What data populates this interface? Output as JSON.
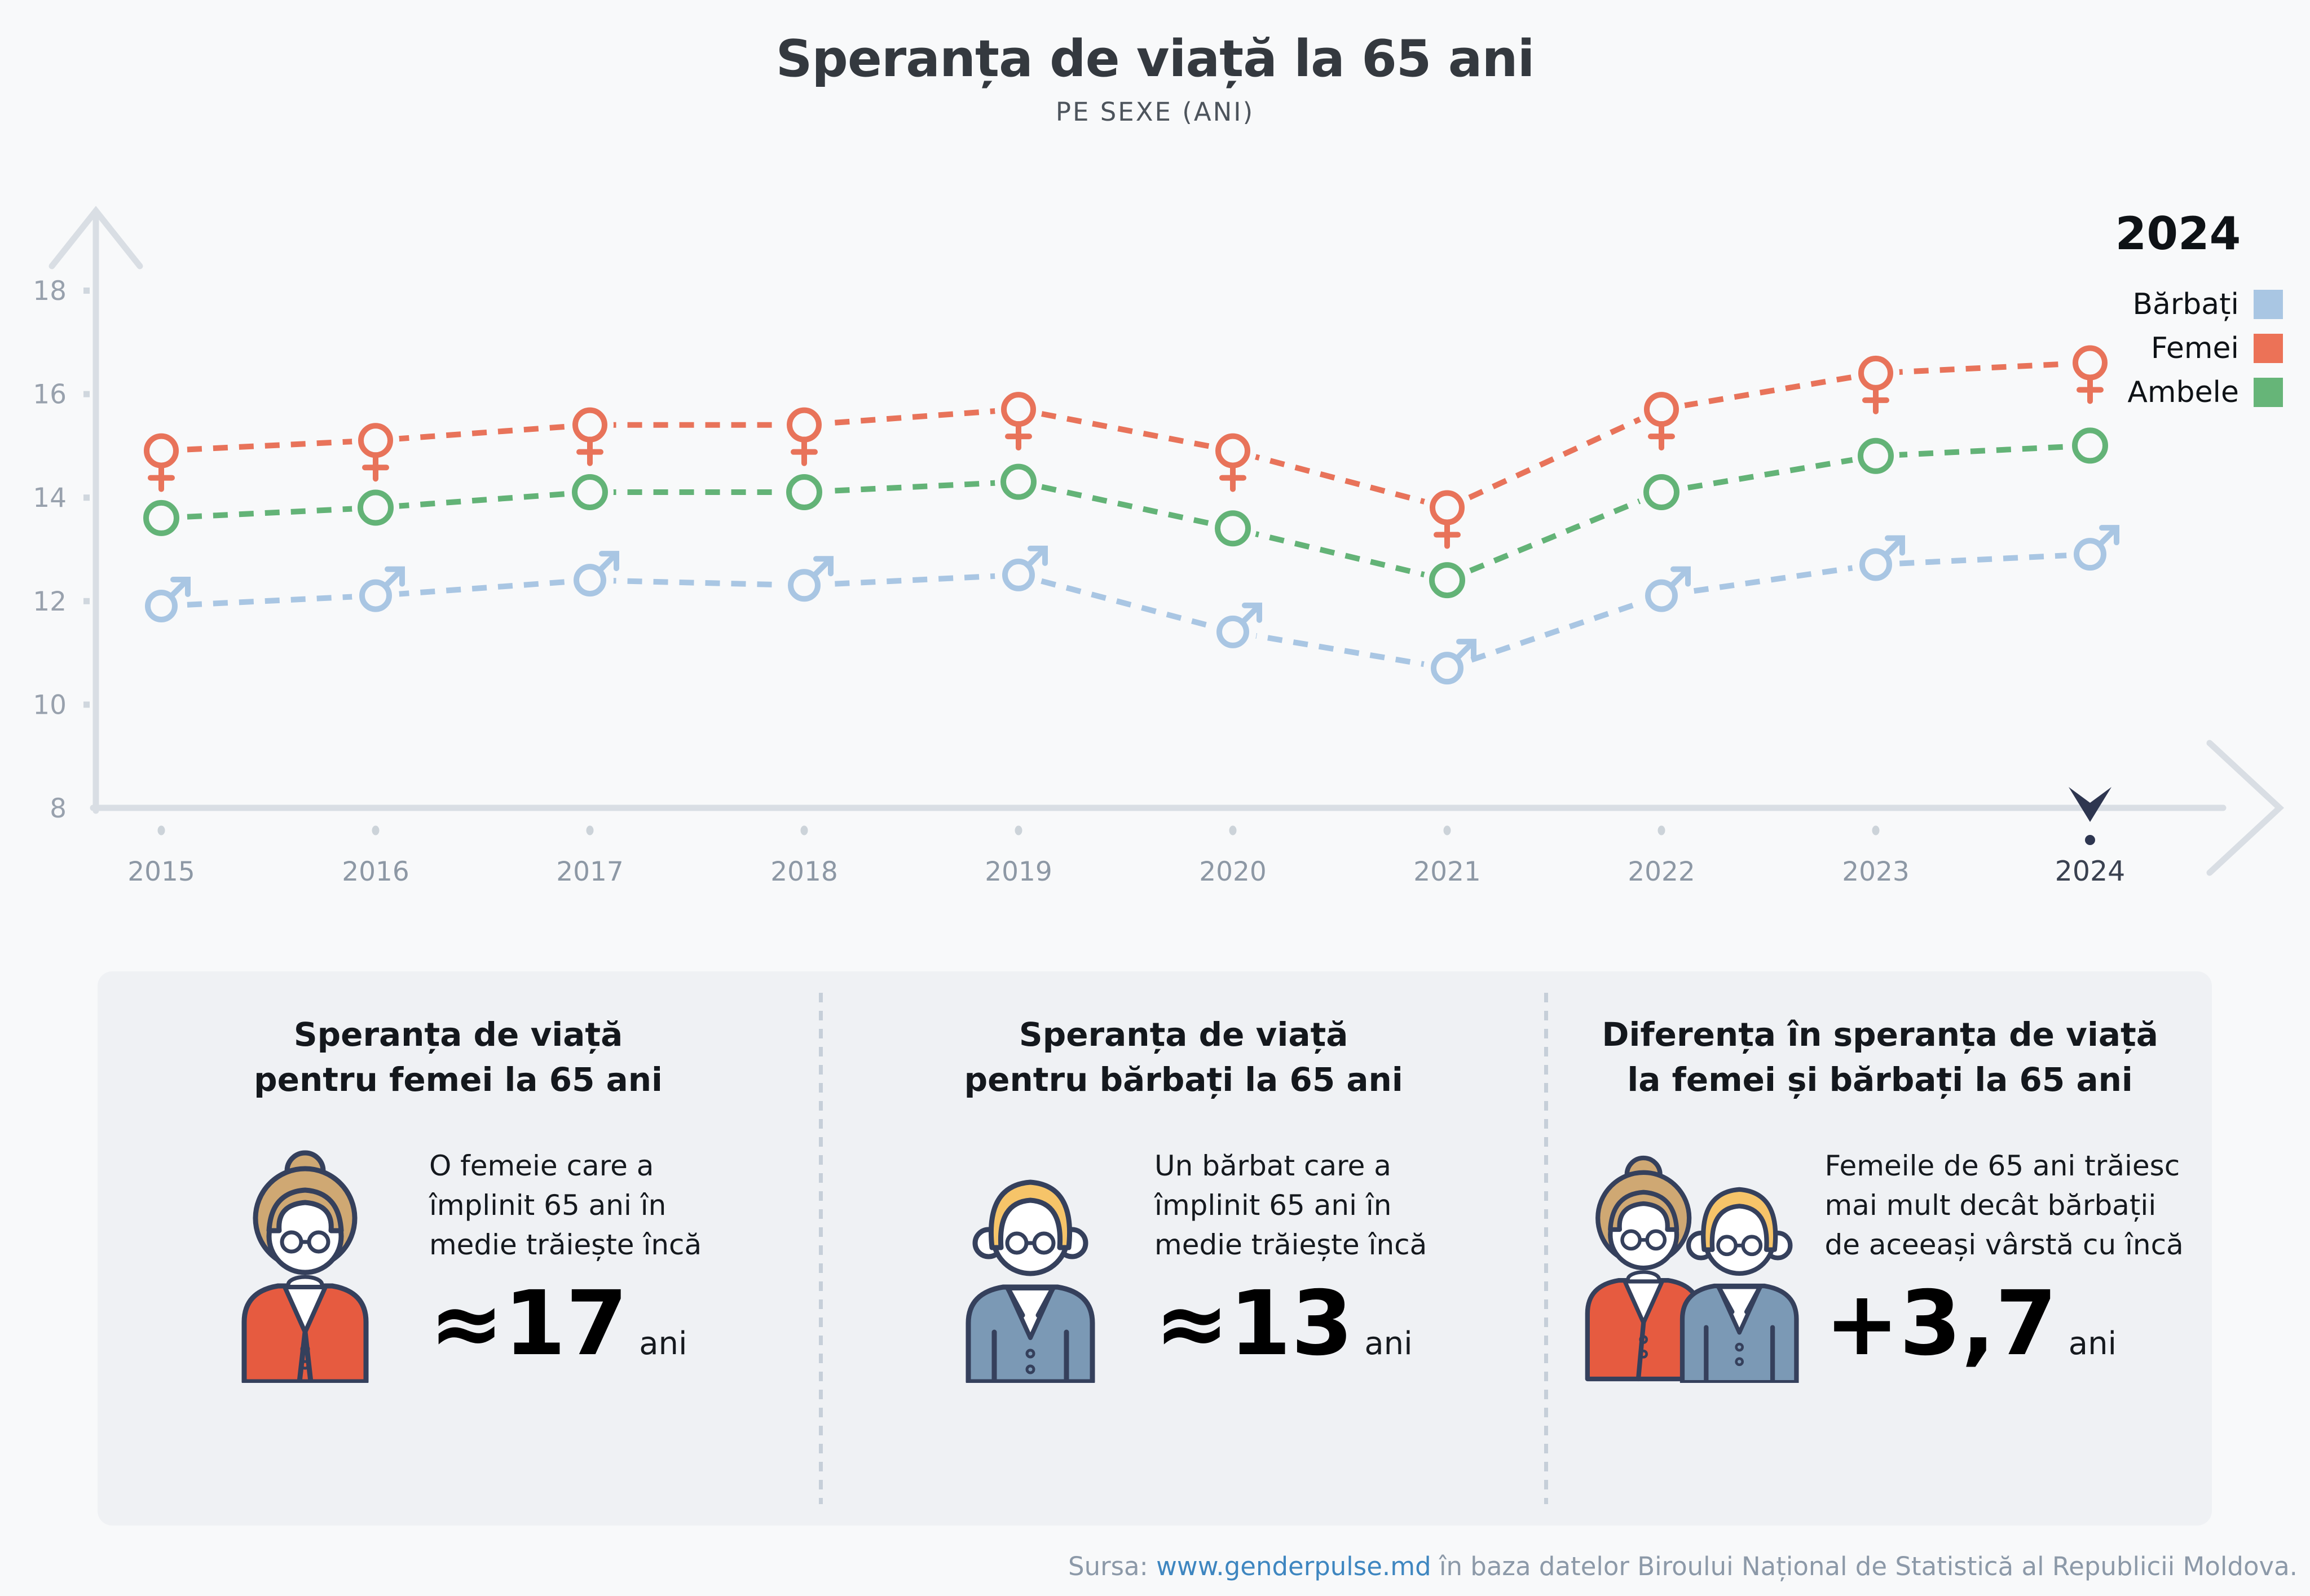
{
  "title": "Speranța de viață la 65 ani",
  "subtitle": "PE SEXE (ANI)",
  "legend": {
    "year": "2024",
    "items": [
      {
        "label": "Bărbați",
        "color": "#a9c6e3"
      },
      {
        "label": "Femei",
        "color": "#ec7257"
      },
      {
        "label": "Ambele",
        "color": "#66b578"
      }
    ]
  },
  "chart_data": {
    "type": "line",
    "title": "Speranța de viață la 65 ani",
    "subtitle": "PE SEXE (ANI)",
    "x": [
      2015,
      2016,
      2017,
      2018,
      2019,
      2020,
      2021,
      2022,
      2023,
      2024
    ],
    "series": [
      {
        "name": "Femei",
        "color": "#e8735a",
        "marker": "female",
        "values": [
          14.9,
          15.1,
          15.4,
          15.4,
          15.7,
          14.9,
          13.8,
          15.7,
          16.4,
          16.6
        ]
      },
      {
        "name": "Ambele",
        "color": "#63b377",
        "marker": "circle",
        "values": [
          13.6,
          13.8,
          14.1,
          14.1,
          14.3,
          13.4,
          12.4,
          14.1,
          14.8,
          15.0
        ]
      },
      {
        "name": "Bărbați",
        "color": "#a9c6e3",
        "marker": "male",
        "values": [
          11.9,
          12.1,
          12.4,
          12.3,
          12.5,
          11.4,
          10.7,
          12.1,
          12.7,
          12.9
        ]
      }
    ],
    "ylim": [
      8,
      18
    ],
    "yticks": [
      8,
      10,
      12,
      14,
      16,
      18
    ],
    "line_style": "dashed",
    "grid": false,
    "legend_position": "top-right",
    "highlight_year": 2024
  },
  "cards": [
    {
      "title_line1": "Speranța de viață",
      "title_line2": "pentru femei la 65 ani",
      "icon": "woman",
      "text_line1": "O femeie care a",
      "text_line2": "împlinit 65 ani în",
      "text_line3": "medie trăiește încă",
      "value": "≈17",
      "unit": "ani"
    },
    {
      "title_line1": "Speranța de viață",
      "title_line2": "pentru bărbați la 65 ani",
      "icon": "man",
      "text_line1": "Un bărbat care a",
      "text_line2": "împlinit 65 ani în",
      "text_line3": "medie trăiește încă",
      "value": "≈13",
      "unit": "ani"
    },
    {
      "title_line1": "Diferența în speranța de viață",
      "title_line2": "la femei și bărbați la 65 ani",
      "icon": "woman-and-man",
      "text_line1": "Femeile de 65 ani trăiesc",
      "text_line2": "mai mult decât bărbații",
      "text_line3": "de aceeași vârstă cu încă",
      "value": "+3,7",
      "unit": "ani"
    }
  ],
  "footer": {
    "prefix": "Sursa: ",
    "link": "www.genderpulse.md",
    "suffix": " în baza datelor Biroului Național de Statistică al Republicii Moldova."
  }
}
